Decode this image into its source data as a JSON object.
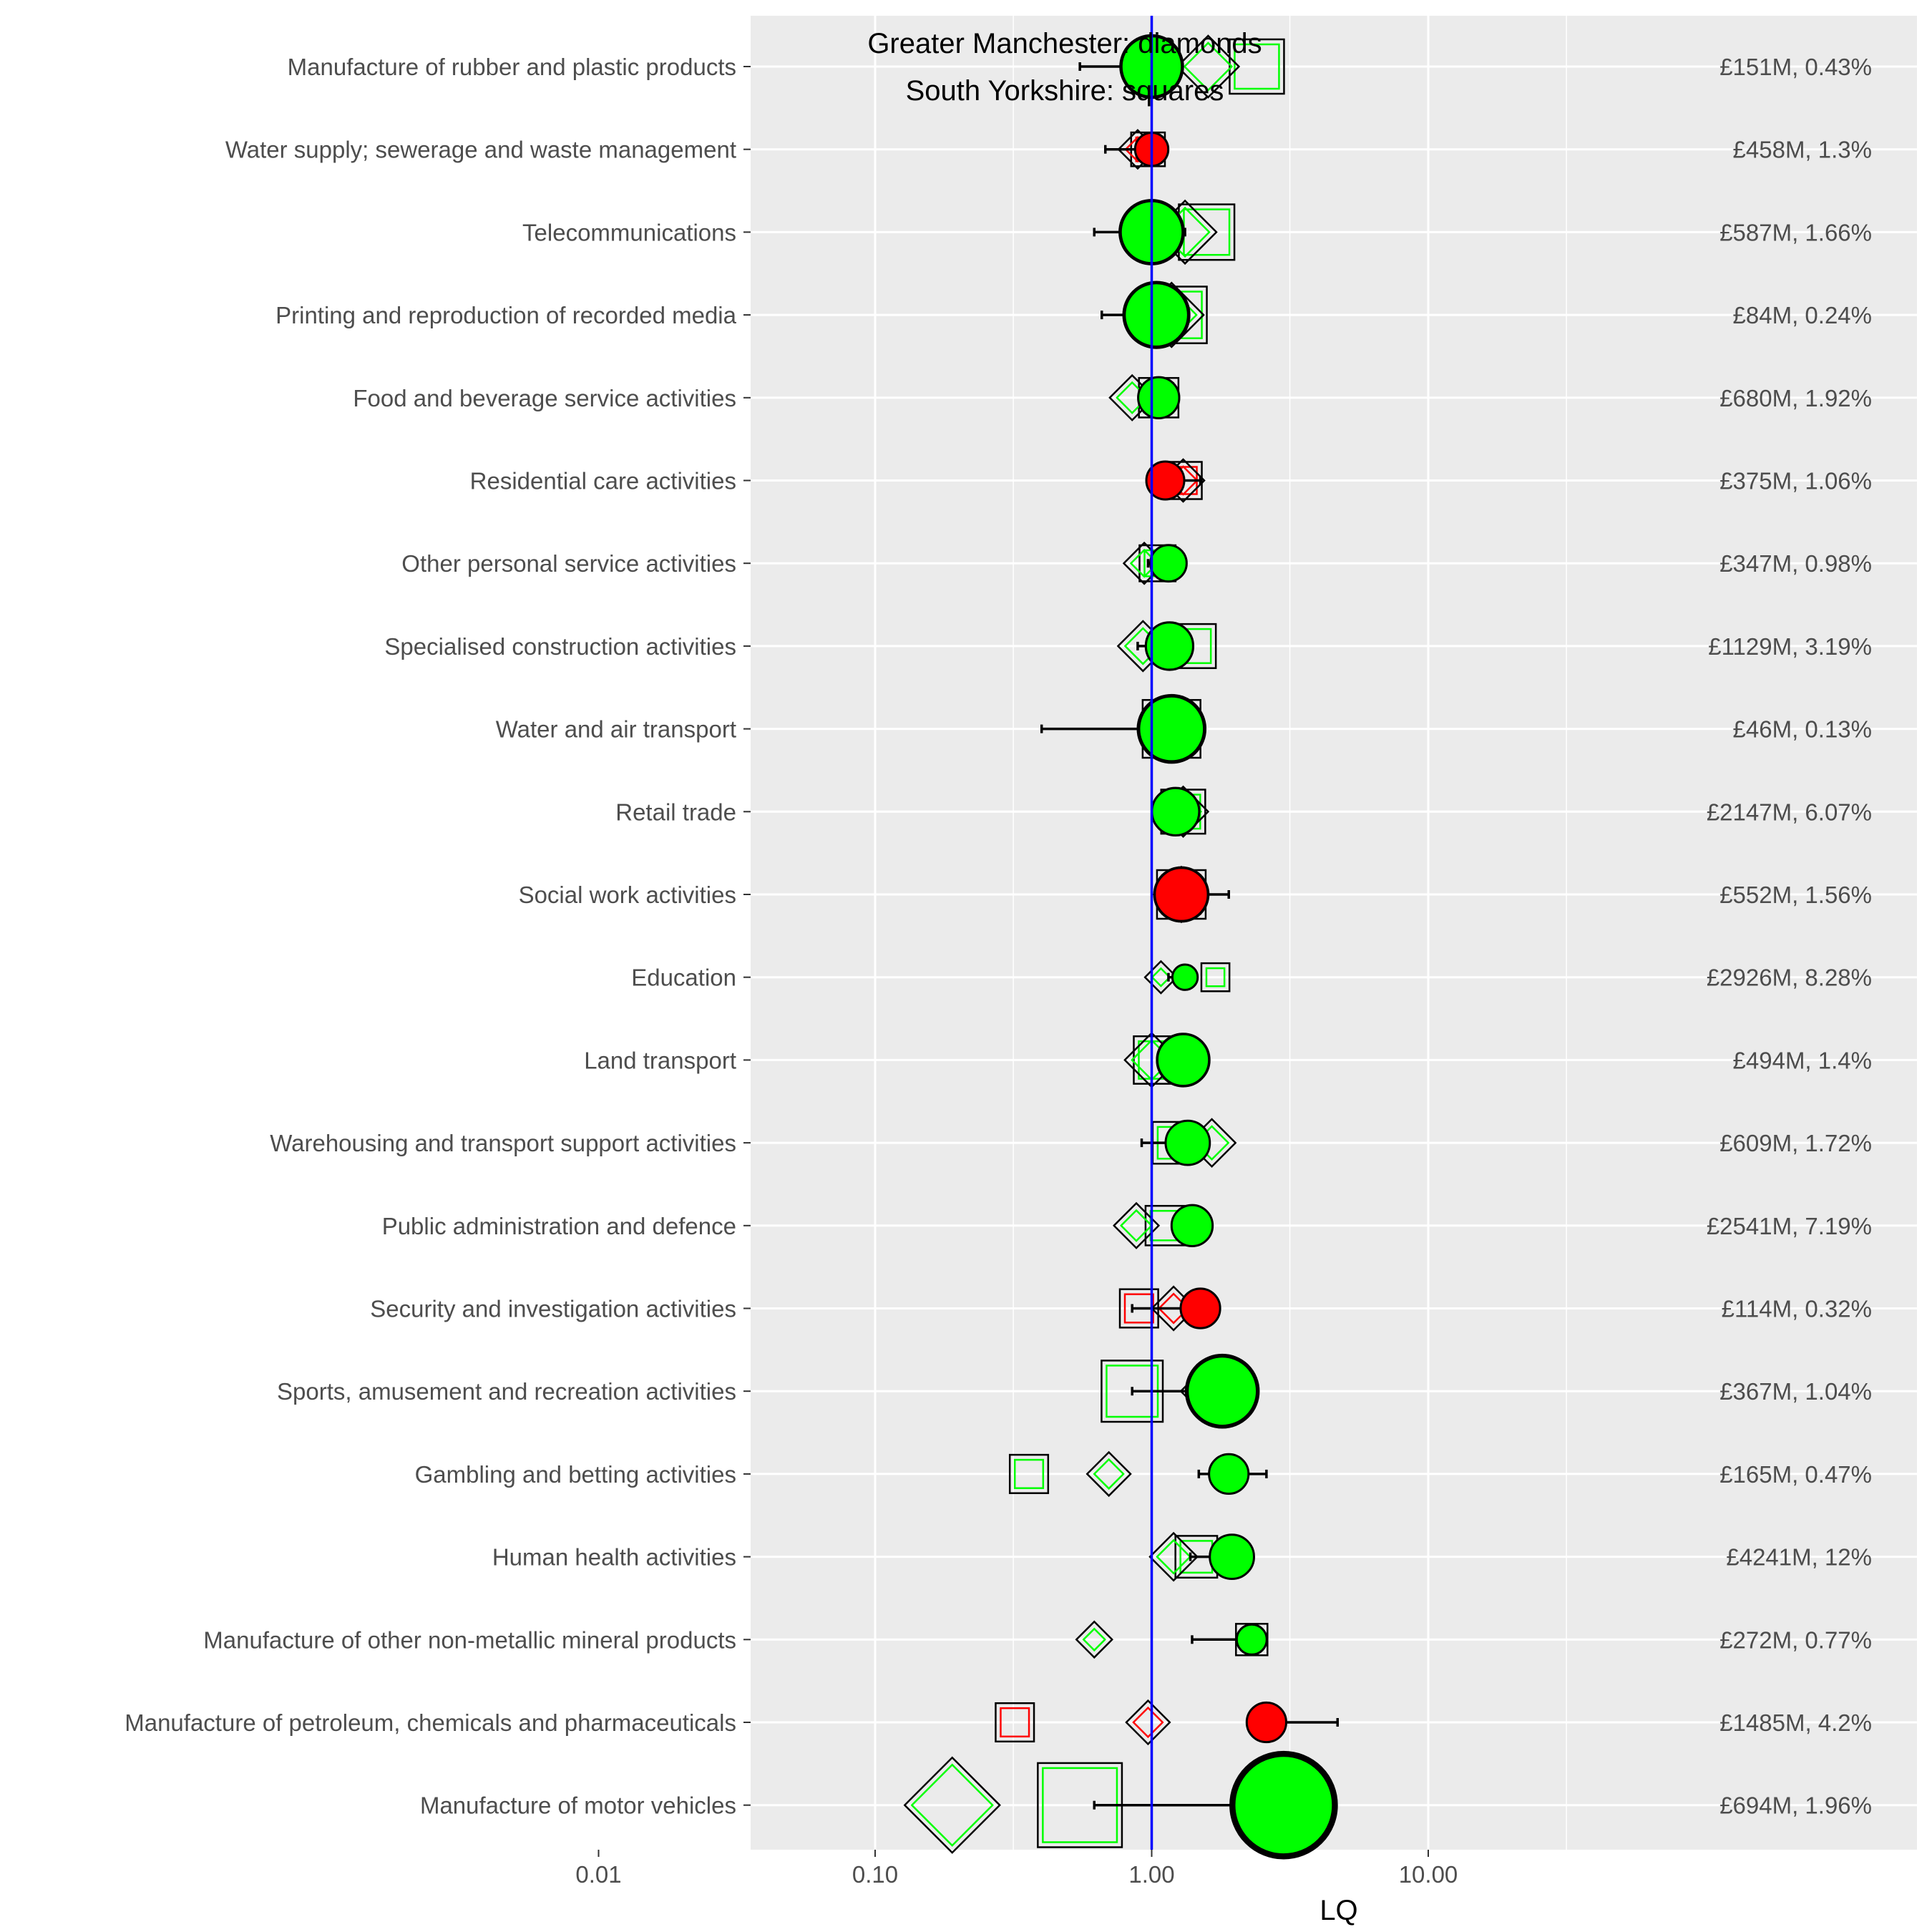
{
  "chart_data": {
    "type": "scatter",
    "xlabel": "LQ",
    "x_scale": "log10",
    "xlim": [
      0.004,
      50
    ],
    "x_ticks": [
      0.01,
      0.1,
      1,
      10
    ],
    "x_tick_labels": [
      "0.01",
      "0.10",
      "1.00",
      "10.00"
    ],
    "reference_line": 1,
    "legend_text": [
      "Greater Manchester: diamonds",
      "South Yorkshire: squares"
    ],
    "colors": {
      "above": "#00ff00",
      "below": "#ff0000",
      "reference": "#0000ff",
      "panel": "#ebebeb",
      "grid": "#ffffff"
    },
    "rows": [
      {
        "label": "Manufacture of rubber and plastic products",
        "value_text": "£151M, 0.43%",
        "lq": 1.0,
        "lq_low": 0.55,
        "lq_high": 1.05,
        "gm": 1.6,
        "sy": 2.4,
        "color": "green",
        "size": 1.5
      },
      {
        "label": "Water supply; sewerage and waste management",
        "value_text": "£458M, 1.3%",
        "lq": 1.0,
        "lq_low": 0.68,
        "lq_high": 1.03,
        "gm": 0.89,
        "sy": 0.97,
        "color": "red",
        "size": 0.6
      },
      {
        "label": "Telecommunications",
        "value_text": "£587M, 1.66%",
        "lq": 1.0,
        "lq_low": 0.62,
        "lq_high": 1.32,
        "gm": 1.32,
        "sy": 1.58,
        "color": "green",
        "size": 1.55
      },
      {
        "label": "Printing and reproduction of recorded media",
        "value_text": "£84M, 0.24%",
        "lq": 1.04,
        "lq_low": 0.66,
        "lq_high": 1.25,
        "gm": 1.18,
        "sy": 1.25,
        "color": "green",
        "size": 1.6
      },
      {
        "label": "Food and beverage service activities",
        "value_text": "£680M, 1.92%",
        "lq": 1.06,
        "lq_low": 0.96,
        "lq_high": 1.1,
        "gm": 0.85,
        "sy": 1.06,
        "color": "green",
        "size": 0.85
      },
      {
        "label": "Residential care activities",
        "value_text": "£375M, 1.06%",
        "lq": 1.12,
        "lq_low": 1.12,
        "lq_high": 1.5,
        "gm": 1.3,
        "sy": 1.3,
        "color": "red",
        "size": 0.75
      },
      {
        "label": "Other personal service activities",
        "value_text": "£347M, 0.98%",
        "lq": 1.15,
        "lq_low": 0.97,
        "lq_high": 1.15,
        "gm": 0.94,
        "sy": 1.05,
        "color": "green",
        "size": 0.7
      },
      {
        "label": "Specialised construction activities",
        "value_text": "£1129M, 3.19%",
        "lq": 1.16,
        "lq_low": 0.89,
        "lq_high": 1.22,
        "gm": 0.93,
        "sy": 1.42,
        "color": "green",
        "size": 1.05
      },
      {
        "label": "Water and air transport",
        "value_text": "£46M, 0.13%",
        "lq": 1.18,
        "lq_low": 0.4,
        "lq_high": 1.3,
        "gm": 1.18,
        "sy": 1.18,
        "color": "green",
        "size": 1.65
      },
      {
        "label": "Retail trade",
        "value_text": "£2147M, 6.07%",
        "lq": 1.22,
        "lq_low": 1.05,
        "lq_high": 1.35,
        "gm": 1.3,
        "sy": 1.3,
        "color": "green",
        "size": 1.05
      },
      {
        "label": "Social work activities",
        "value_text": "£552M, 1.56%",
        "lq": 1.28,
        "lq_low": 1.2,
        "lq_high": 1.9,
        "gm": 1.28,
        "sy": 1.28,
        "color": "red",
        "size": 1.25
      },
      {
        "label": "Education",
        "value_text": "£2926M, 8.28%",
        "lq": 1.32,
        "lq_low": 1.15,
        "lq_high": 1.32,
        "gm": 1.08,
        "sy": 1.7,
        "color": "green",
        "size": 0.35
      },
      {
        "label": "Land transport",
        "value_text": "£494M, 1.4%",
        "lq": 1.3,
        "lq_low": 1.07,
        "lq_high": 1.3,
        "gm": 1.0,
        "sy": 1.05,
        "color": "green",
        "size": 1.2
      },
      {
        "label": "Warehousing and transport support activities",
        "value_text": "£609M, 1.72%",
        "lq": 1.35,
        "lq_low": 0.92,
        "lq_high": 1.4,
        "gm": 1.65,
        "sy": 1.2,
        "color": "green",
        "size": 0.95
      },
      {
        "label": "Public administration and defence",
        "value_text": "£2541M, 7.19%",
        "lq": 1.4,
        "lq_low": 1.2,
        "lq_high": 1.45,
        "gm": 0.88,
        "sy": 1.12,
        "color": "green",
        "size": 0.85
      },
      {
        "label": "Security and investigation activities",
        "value_text": "£114M, 0.32%",
        "lq": 1.5,
        "lq_low": 0.85,
        "lq_high": 1.65,
        "gm": 1.2,
        "sy": 0.9,
        "color": "red",
        "size": 0.8
      },
      {
        "label": "Sports, amusement and recreation activities",
        "value_text": "£367M, 1.04%",
        "lq": 1.8,
        "lq_low": 0.85,
        "lq_high": 1.8,
        "gm": 1.7,
        "sy": 0.85,
        "color": "green",
        "size": 1.8
      },
      {
        "label": "Gambling and betting activities",
        "value_text": "£165M, 0.47%",
        "lq": 1.9,
        "lq_low": 1.48,
        "lq_high": 2.6,
        "gm": 0.7,
        "sy": 0.36,
        "color": "green",
        "size": 0.8
      },
      {
        "label": "Human health activities",
        "value_text": "£4241M, 12%",
        "lq": 1.95,
        "lq_low": 1.38,
        "lq_high": 1.95,
        "gm": 1.2,
        "sy": 1.45,
        "color": "green",
        "size": 0.95
      },
      {
        "label": "Manufacture of other non-metallic mineral products",
        "value_text": "£272M, 0.77%",
        "lq": 2.3,
        "lq_low": 1.4,
        "lq_high": 2.3,
        "gm": 0.62,
        "sy": 2.3,
        "color": "green",
        "size": 0.5
      },
      {
        "label": "Manufacture of petroleum, chemicals and pharmaceuticals",
        "value_text": "£1485M, 4.2%",
        "lq": 2.6,
        "lq_low": 2.6,
        "lq_high": 4.7,
        "gm": 0.97,
        "sy": 0.32,
        "color": "red",
        "size": 0.8
      },
      {
        "label": "Manufacture of motor vehicles",
        "value_text": "£694M, 1.96%",
        "lq": 3.0,
        "lq_low": 0.62,
        "lq_high": 3.1,
        "gm": 0.19,
        "sy": 0.55,
        "color": "green",
        "size": 2.8
      }
    ]
  }
}
